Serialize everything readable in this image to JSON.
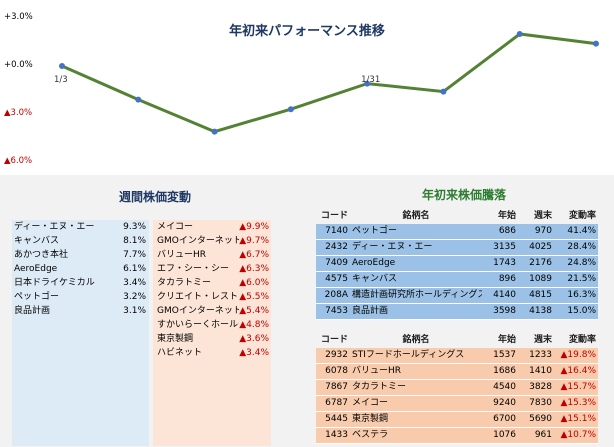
{
  "chart_data": {
    "type": "line",
    "title": "年初来パフォーマンス推移",
    "ytick_labels": [
      "+3.0%",
      "+0.0%",
      "▲3.0%",
      "▲6.0%"
    ],
    "ytick_values": [
      3,
      0,
      -3,
      -6
    ],
    "ylim": [
      -6,
      3
    ],
    "xtick_labels": [
      "1/3",
      "1/31"
    ],
    "series": [
      {
        "values": [
          0,
          -2.1,
          -4.1,
          -2.7,
          -1.1,
          -1.6,
          2.0,
          1.4
        ]
      }
    ],
    "colors": {
      "line": "#548235",
      "marker": "#4472c4"
    },
    "grid": false
  },
  "weekly": {
    "title": "週間株価変動",
    "gainers": [
      {
        "name": "ディー・エヌ・エー",
        "change": "9.3%"
      },
      {
        "name": "キャンバス",
        "change": "8.1%"
      },
      {
        "name": "あかつき本社",
        "change": "7.7%"
      },
      {
        "name": "AeroEdge",
        "change": "6.1%"
      },
      {
        "name": "日本ドライケミカル",
        "change": "3.4%"
      },
      {
        "name": "ペットゴー",
        "change": "3.2%"
      },
      {
        "name": "良品計画",
        "change": "3.1%"
      }
    ],
    "losers": [
      {
        "name": "メイコー",
        "change": "▲9.9%"
      },
      {
        "name": "GMOインターネット",
        "change": "▲9.7%"
      },
      {
        "name": "バリューHR",
        "change": "▲6.7%"
      },
      {
        "name": "エフ・シー・シー",
        "change": "▲6.3%"
      },
      {
        "name": "タカラトミー",
        "change": "▲6.0%"
      },
      {
        "name": "クリエイト・レストランツ",
        "change": "▲5.5%"
      },
      {
        "name": "GMOインターネットグ",
        "change": "▲5.4%"
      },
      {
        "name": "すかいらーくホールディ",
        "change": "▲4.8%"
      },
      {
        "name": "東京製鋼",
        "change": "▲3.6%"
      },
      {
        "name": "ハビネット",
        "change": "▲3.4%"
      }
    ]
  },
  "ytd": {
    "title": "年初来株価騰落",
    "headers": {
      "code": "コード",
      "name": "銘柄名",
      "start": "年始",
      "end": "週末",
      "change": "変動率"
    },
    "gainers": [
      {
        "code": "7140",
        "name": "ペットゴー",
        "start": "686",
        "end": "970",
        "change": "41.4%"
      },
      {
        "code": "2432",
        "name": "ディー・エヌ・エー",
        "start": "3135",
        "end": "4025",
        "change": "28.4%"
      },
      {
        "code": "7409",
        "name": "AeroEdge",
        "start": "1743",
        "end": "2176",
        "change": "24.8%"
      },
      {
        "code": "4575",
        "name": "キャンバス",
        "start": "896",
        "end": "1089",
        "change": "21.5%"
      },
      {
        "code": "208A",
        "name": "構造計画研究所ホールディングス",
        "start": "4140",
        "end": "4815",
        "change": "16.3%"
      },
      {
        "code": "7453",
        "name": "良品計画",
        "start": "3598",
        "end": "4138",
        "change": "15.0%"
      }
    ],
    "losers": [
      {
        "code": "2932",
        "name": "STIフードホールディングス",
        "start": "1537",
        "end": "1233",
        "change": "▲19.8%"
      },
      {
        "code": "6078",
        "name": "バリューHR",
        "start": "1686",
        "end": "1410",
        "change": "▲16.4%"
      },
      {
        "code": "7867",
        "name": "タカラトミー",
        "start": "4540",
        "end": "3828",
        "change": "▲15.7%"
      },
      {
        "code": "6787",
        "name": "メイコー",
        "start": "9240",
        "end": "7830",
        "change": "▲15.3%"
      },
      {
        "code": "5445",
        "name": "東京製鋼",
        "start": "6700",
        "end": "5690",
        "change": "▲15.1%"
      },
      {
        "code": "1433",
        "name": "ベステラ",
        "start": "1076",
        "end": "961",
        "change": "▲10.7%"
      }
    ]
  }
}
